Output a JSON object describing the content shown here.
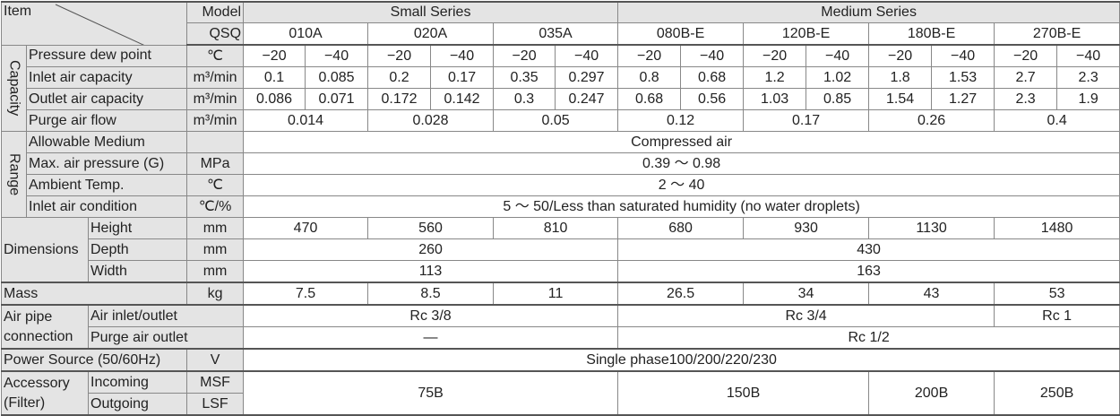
{
  "header": {
    "item": "Item",
    "model": "Model",
    "qsq": "QSQ",
    "small_series": "Small Series",
    "medium_series": "Medium Series",
    "models": [
      "010A",
      "020A",
      "035A",
      "080B-E",
      "120B-E",
      "180B-E",
      "270B-E"
    ]
  },
  "groups": {
    "capacity": "Capacity",
    "range": "Range",
    "dimensions": "Dimensions",
    "air_pipe": "Air pipe connection",
    "accessory": "Accessory (Filter)"
  },
  "rows": [
    {
      "label": "Pressure dew point",
      "unit": "℃",
      "values": [
        "−20",
        "−40",
        "−20",
        "−40",
        "−20",
        "−40",
        "−20",
        "−40",
        "−20",
        "−40",
        "−20",
        "−40",
        "−20",
        "−40"
      ]
    },
    {
      "label": "Inlet air capacity",
      "unit": "m³/min",
      "values": [
        "0.1",
        "0.085",
        "0.2",
        "0.17",
        "0.35",
        "0.297",
        "0.8",
        "0.68",
        "1.2",
        "1.02",
        "1.8",
        "1.53",
        "2.7",
        "2.3"
      ]
    },
    {
      "label": "Outlet air capacity",
      "unit": "m³/min",
      "values": [
        "0.086",
        "0.071",
        "0.172",
        "0.142",
        "0.3",
        "0.247",
        "0.68",
        "0.56",
        "1.03",
        "0.85",
        "1.54",
        "1.27",
        "2.3",
        "1.9"
      ]
    },
    {
      "label": "Purge air flow",
      "unit": "m³/min",
      "values": [
        "0.014",
        "0.028",
        "0.05",
        "0.12",
        "0.17",
        "0.26",
        "0.4"
      ]
    },
    {
      "label": "Allowable Medium",
      "values": [
        "Compressed air"
      ]
    },
    {
      "label": "Max. air pressure (G)",
      "unit": "MPa",
      "values": [
        "0.39 ～ 0.98"
      ]
    },
    {
      "label": "Ambient Temp.",
      "unit": "℃",
      "values": [
        "2 ～ 40"
      ]
    },
    {
      "label": "Inlet air condition",
      "unit": "℃/%",
      "values": [
        "5 ～ 50/Less than saturated humidity (no water droplets)"
      ]
    },
    {
      "label": "Height",
      "unit": "mm",
      "values": [
        "470",
        "560",
        "810",
        "680",
        "930",
        "1130",
        "1480"
      ]
    },
    {
      "label": "Depth",
      "unit": "mm",
      "values": [
        "260",
        "430"
      ]
    },
    {
      "label": "Width",
      "unit": "mm",
      "values": [
        "113",
        "163"
      ]
    },
    {
      "label": "Mass",
      "unit": "kg",
      "values": [
        "7.5",
        "8.5",
        "11",
        "26.5",
        "34",
        "43",
        "53"
      ]
    },
    {
      "label": "Air inlet/outlet",
      "values": [
        "Rc 3/8",
        "Rc 3/4",
        "Rc 1"
      ]
    },
    {
      "label": "Purge air outlet",
      "values": [
        "—",
        "Rc 1/2"
      ]
    },
    {
      "label": "Power Source (50/60Hz)",
      "unit": "V",
      "values": [
        "Single phase100/200/220/230"
      ]
    },
    {
      "label": "Incoming",
      "unit": "MSF",
      "values": [
        "75B",
        "150B",
        "200B",
        "250B"
      ]
    },
    {
      "label": "Outgoing",
      "unit": "LSF"
    }
  ]
}
